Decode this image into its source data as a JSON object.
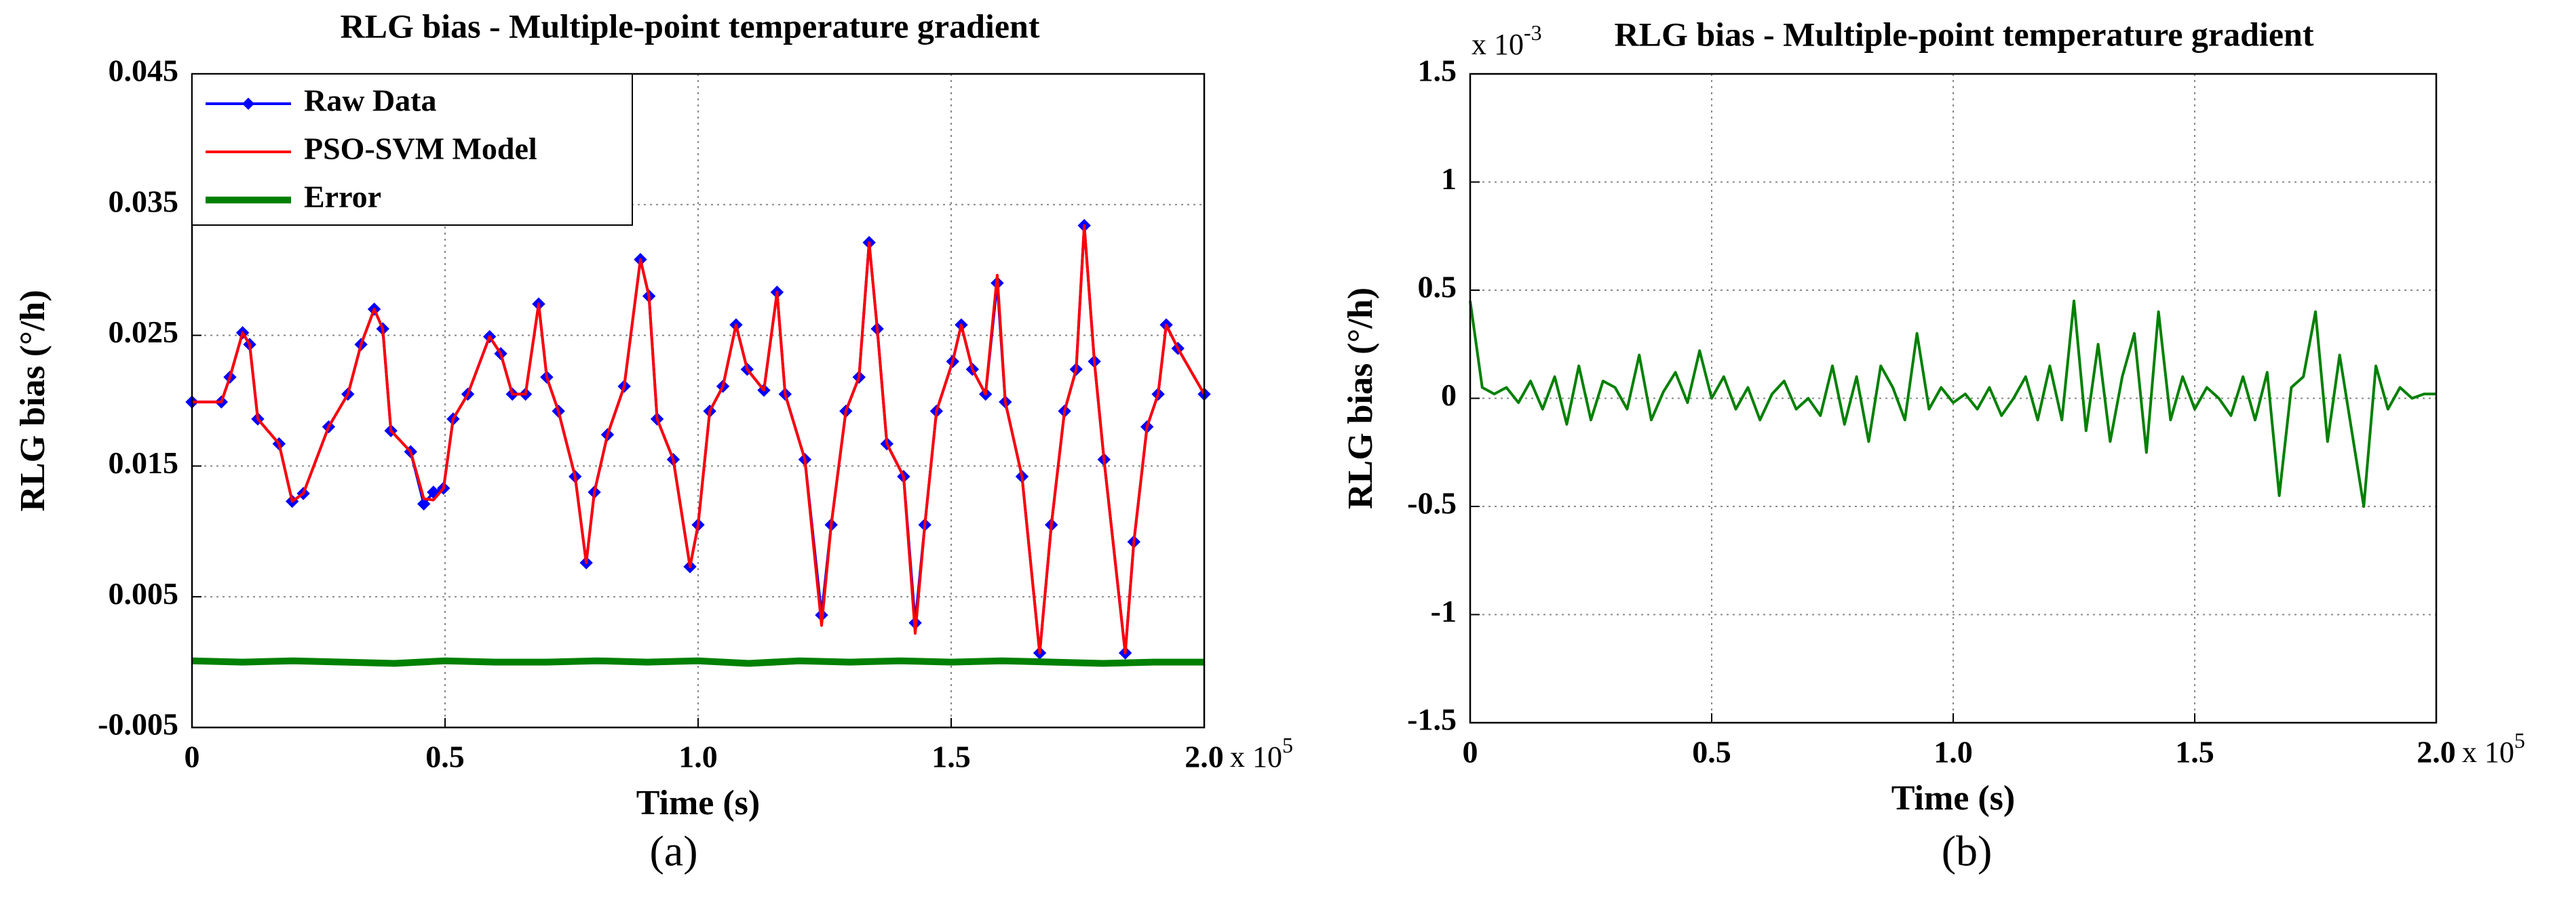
{
  "chart_data": [
    {
      "type": "line",
      "title": "RLG bias - Multiple-point temperature gradient",
      "xlabel": "Time (s)",
      "ylabel": "RLG bias (°/h)",
      "caption": "(a)",
      "x_multiplier": {
        "base": "x 10",
        "exponent": "5"
      },
      "xlim": [
        0,
        200000
      ],
      "xticks": [
        0,
        {
          "value": 50000,
          "label": "0.5"
        },
        {
          "value": 100000,
          "label": "1.0"
        },
        {
          "value": 150000,
          "label": "1.5"
        },
        {
          "value": 200000,
          "label": "2.0"
        }
      ],
      "ylim": [
        -0.005,
        0.045
      ],
      "yticks": [
        -0.005,
        0.005,
        0.015,
        0.025,
        0.035,
        0.045
      ],
      "grid": true,
      "legend": "upper left",
      "series": [
        {
          "name": "Raw Data",
          "color": "#0000ff",
          "marker": "diamond",
          "x": [
            0,
            5800,
            7500,
            10000,
            11400,
            13000,
            17200,
            19800,
            22000,
            27000,
            30800,
            33400,
            36000,
            37700,
            39300,
            43200,
            45800,
            47700,
            49700,
            51600,
            54500,
            58800,
            61000,
            63300,
            65900,
            68500,
            70100,
            72400,
            75700,
            77900,
            79500,
            82100,
            85400,
            88600,
            90300,
            91900,
            95100,
            98400,
            100000,
            102300,
            104900,
            107500,
            109700,
            113000,
            115600,
            117200,
            121100,
            124400,
            126300,
            129200,
            131800,
            133800,
            135400,
            137300,
            140600,
            142900,
            144800,
            147100,
            150300,
            152000,
            154200,
            156800,
            159100,
            160700,
            164000,
            167500,
            169800,
            172400,
            174700,
            176300,
            178300,
            180200,
            184400,
            186100,
            188700,
            190900,
            192500,
            194800,
            200000
          ],
          "values": [
            0.0199,
            0.0199,
            0.0218,
            0.0252,
            0.0243,
            0.0186,
            0.0167,
            0.0123,
            0.0129,
            0.018,
            0.0205,
            0.0243,
            0.027,
            0.0255,
            0.0177,
            0.0161,
            0.0121,
            0.013,
            0.0133,
            0.0186,
            0.0205,
            0.0249,
            0.0236,
            0.0205,
            0.0205,
            0.0274,
            0.0218,
            0.0192,
            0.0142,
            0.0076,
            0.013,
            0.0174,
            0.0211,
            0.0308,
            0.028,
            0.0186,
            0.0155,
            0.0073,
            0.0105,
            0.0192,
            0.0211,
            0.0258,
            0.0224,
            0.0208,
            0.0283,
            0.0205,
            0.0155,
            0.0036,
            0.0105,
            0.0192,
            0.0218,
            0.0321,
            0.0255,
            0.0167,
            0.0142,
            0.003,
            0.0105,
            0.0192,
            0.023,
            0.0258,
            0.0224,
            0.0205,
            0.029,
            0.0199,
            0.0142,
            0.0007,
            0.0105,
            0.0192,
            0.0224,
            0.0334,
            0.023,
            0.0155,
            0.0007,
            0.0092,
            0.018,
            0.0205,
            0.0258,
            0.024,
            0.0205
          ]
        },
        {
          "name": "PSO-SVM Model",
          "color": "#ff0000",
          "x": [
            0,
            5800,
            7500,
            10000,
            11400,
            13000,
            17200,
            19800,
            22000,
            27000,
            30800,
            33400,
            36000,
            37700,
            39300,
            43200,
            45800,
            47700,
            49700,
            51600,
            54500,
            58800,
            61000,
            63300,
            65900,
            68500,
            70100,
            72400,
            75700,
            77900,
            79500,
            82100,
            85400,
            88600,
            90300,
            91900,
            95100,
            98400,
            100000,
            102300,
            104900,
            107500,
            109700,
            113000,
            115600,
            117200,
            121100,
            124400,
            126300,
            129200,
            131800,
            133800,
            135400,
            137300,
            140600,
            142900,
            144800,
            147100,
            150300,
            152000,
            154200,
            156800,
            159100,
            160700,
            164000,
            167500,
            169800,
            172400,
            174700,
            176300,
            178300,
            180200,
            184400,
            186100,
            188700,
            190900,
            192500,
            194800,
            200000
          ],
          "values": [
            0.0199,
            0.0199,
            0.0218,
            0.0252,
            0.0243,
            0.0186,
            0.0167,
            0.0123,
            0.0129,
            0.018,
            0.0205,
            0.0243,
            0.027,
            0.0255,
            0.0177,
            0.0161,
            0.0125,
            0.0124,
            0.0133,
            0.0186,
            0.0205,
            0.0249,
            0.0236,
            0.0205,
            0.0205,
            0.0274,
            0.0218,
            0.0192,
            0.0142,
            0.0076,
            0.013,
            0.0174,
            0.0211,
            0.0308,
            0.028,
            0.0186,
            0.0155,
            0.0073,
            0.0105,
            0.0192,
            0.0211,
            0.0258,
            0.0224,
            0.0208,
            0.0283,
            0.0205,
            0.0155,
            0.0028,
            0.0105,
            0.0192,
            0.0218,
            0.0321,
            0.0255,
            0.0167,
            0.0142,
            0.0022,
            0.0105,
            0.0192,
            0.023,
            0.0258,
            0.0224,
            0.0205,
            0.0296,
            0.0199,
            0.0142,
            0.0007,
            0.0105,
            0.0192,
            0.0224,
            0.0334,
            0.023,
            0.0155,
            0.0007,
            0.0092,
            0.018,
            0.0205,
            0.0258,
            0.024,
            0.0205
          ]
        },
        {
          "name": "Error",
          "color": "#008000",
          "x": [
            0,
            10000,
            20000,
            30000,
            40000,
            50000,
            60000,
            70000,
            80000,
            90000,
            100000,
            110000,
            120000,
            130000,
            140000,
            150000,
            160000,
            170000,
            180000,
            190000,
            200000
          ],
          "values": [
            0.0001,
            0,
            0.0001,
            0,
            -0.0001,
            0.0001,
            0,
            0,
            0.0001,
            0,
            0.0001,
            -0.0001,
            0.0001,
            0,
            0.0001,
            0,
            0.0001,
            0,
            -0.0001,
            0,
            0
          ]
        }
      ]
    },
    {
      "type": "line",
      "title": "RLG bias - Multiple-point temperature gradient",
      "xlabel": "Time (s)",
      "ylabel": "RLG bias (°/h)",
      "caption": "(b)",
      "x_multiplier": {
        "base": "x 10",
        "exponent": "5"
      },
      "y_multiplier": {
        "base": "x 10",
        "exponent": "-3"
      },
      "xlim": [
        0,
        200000
      ],
      "xticks": [
        0,
        {
          "value": 50000,
          "label": "0.5"
        },
        {
          "value": 100000,
          "label": "1.0"
        },
        {
          "value": 150000,
          "label": "1.5"
        },
        {
          "value": 200000,
          "label": "2.0"
        }
      ],
      "ylim": [
        -1.5,
        1.5
      ],
      "yticks": [
        -1.5,
        -1,
        -0.5,
        0,
        0.5,
        1,
        1.5
      ],
      "grid": true,
      "series": [
        {
          "color": "#008000",
          "x": [
            0,
            2500,
            5000,
            7500,
            10000,
            12500,
            15000,
            17500,
            20000,
            22500,
            25000,
            27500,
            30000,
            32500,
            35000,
            37500,
            40000,
            42500,
            45000,
            47500,
            50000,
            52500,
            55000,
            57500,
            60000,
            62500,
            65000,
            67500,
            70000,
            72500,
            75000,
            77500,
            80000,
            82500,
            85000,
            87500,
            90000,
            92500,
            95000,
            97500,
            100000,
            102500,
            105000,
            107500,
            110000,
            112500,
            115000,
            117500,
            120000,
            122500,
            125000,
            127500,
            130000,
            132500,
            135000,
            137500,
            140000,
            142500,
            145000,
            147500,
            150000,
            152500,
            155000,
            157500,
            160000,
            162500,
            165000,
            167500,
            170000,
            172500,
            175000,
            177500,
            180000,
            182500,
            185000,
            187500,
            190000,
            192500,
            195000,
            197500,
            200000
          ],
          "values": [
            0.45,
            0.05,
            0.02,
            0.05,
            -0.02,
            0.08,
            -0.05,
            0.1,
            -0.12,
            0.15,
            -0.1,
            0.08,
            0.05,
            -0.05,
            0.2,
            -0.1,
            0.03,
            0.12,
            -0.02,
            0.22,
            0,
            0.1,
            -0.05,
            0.05,
            -0.1,
            0.02,
            0.08,
            -0.05,
            0,
            -0.08,
            0.15,
            -0.12,
            0.1,
            -0.2,
            0.15,
            0.05,
            -0.1,
            0.3,
            -0.05,
            0.05,
            -0.02,
            0.02,
            -0.05,
            0.05,
            -0.08,
            0,
            0.1,
            -0.1,
            0.15,
            -0.1,
            0.45,
            -0.15,
            0.25,
            -0.2,
            0.1,
            0.3,
            -0.25,
            0.4,
            -0.1,
            0.1,
            -0.05,
            0.05,
            0,
            -0.08,
            0.1,
            -0.1,
            0.12,
            -0.45,
            0.05,
            0.1,
            0.4,
            -0.2,
            0.2,
            -0.15,
            -0.5,
            0.15,
            -0.05,
            0.05,
            0,
            0.02,
            0.02
          ]
        }
      ]
    }
  ]
}
